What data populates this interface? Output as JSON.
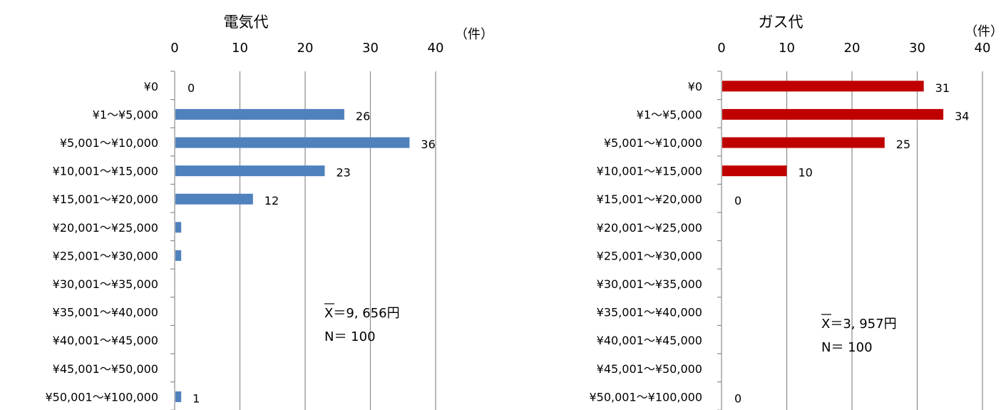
{
  "chart_data": [
    {
      "type": "bar",
      "orientation": "horizontal",
      "title": "電気代",
      "unit": "（件）",
      "xlim": [
        0,
        40
      ],
      "ticks": [
        "0",
        "10",
        "20",
        "30",
        "40"
      ],
      "categories": [
        "¥0",
        "¥1〜¥5,000",
        "¥5,001〜¥10,000",
        "¥10,001〜¥15,000",
        "¥15,001〜¥20,000",
        "¥20,001〜¥25,000",
        "¥25,001〜¥30,000",
        "¥30,001〜¥35,000",
        "¥35,001〜¥40,000",
        "¥40,001〜¥45,000",
        "¥45,001〜¥50,000",
        "¥50,001〜¥100,000"
      ],
      "values": [
        0,
        26,
        36,
        23,
        12,
        1,
        1,
        0,
        0,
        0,
        0,
        1
      ],
      "data_labels": [
        "0",
        "26",
        "36",
        "23",
        "12",
        "",
        "",
        "",
        "",
        "",
        "",
        "1"
      ],
      "color": "#4f81bd",
      "grid": true,
      "stats": {
        "mean": "X＝9, 656円",
        "n": "N＝ 100"
      }
    },
    {
      "type": "bar",
      "orientation": "horizontal",
      "title": "ガス代",
      "unit": "（件）",
      "xlim": [
        0,
        40
      ],
      "ticks": [
        "0",
        "10",
        "20",
        "30",
        "40"
      ],
      "categories": [
        "¥0",
        "¥1〜¥5,000",
        "¥5,001〜¥10,000",
        "¥10,001〜¥15,000",
        "¥15,001〜¥20,000",
        "¥20,001〜¥25,000",
        "¥25,001〜¥30,000",
        "¥30,001〜¥35,000",
        "¥35,001〜¥40,000",
        "¥40,001〜¥45,000",
        "¥45,001〜¥50,000",
        "¥50,001〜¥100,000"
      ],
      "values": [
        31,
        34,
        25,
        10,
        0,
        0,
        0,
        0,
        0,
        0,
        0,
        0
      ],
      "data_labels": [
        "31",
        "34",
        "25",
        "10",
        "0",
        "",
        "",
        "",
        "",
        "",
        "",
        "0"
      ],
      "color": "#c00000",
      "grid": true,
      "stats": {
        "mean": "X＝3, 957円",
        "n": "N＝ 100"
      }
    }
  ]
}
